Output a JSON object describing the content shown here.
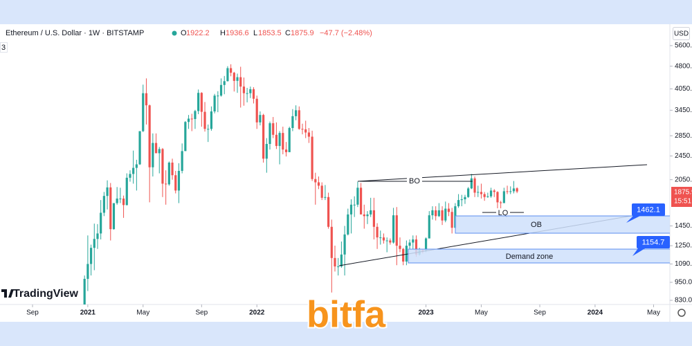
{
  "header": {
    "symbol": "Ethereum / U.S. Dollar · 1W · BITSTAMP",
    "ohlc_letters": [
      "O",
      "H",
      "L",
      "C"
    ],
    "change": "−47.7 (−2.48%)",
    "currency": "USD",
    "pane_label": "3",
    "brand": "TradingView",
    "watermark": "bitfa",
    "countdown": "15:51"
  },
  "chart_data": {
    "type": "candlestick",
    "log_scale": true,
    "up_color": "#26a69a",
    "down_color": "#ef5350",
    "xlim": [
      -26,
      180
    ],
    "xticks": [
      {
        "value": -16,
        "label": "Sep"
      },
      {
        "value": 1,
        "label": "2021"
      },
      {
        "value": 18,
        "label": "May"
      },
      {
        "value": 36,
        "label": "Sep"
      },
      {
        "value": 53,
        "label": "2022"
      },
      {
        "value": 105,
        "label": "2023"
      },
      {
        "value": 122,
        "label": "May"
      },
      {
        "value": 140,
        "label": "Sep"
      },
      {
        "value": 157,
        "label": "2024"
      },
      {
        "value": 175,
        "label": "May"
      }
    ],
    "ylim": [
      784,
      6340
    ],
    "yticks": [
      {
        "value": 5600,
        "label": "5600.0"
      },
      {
        "value": 4800,
        "label": "4800.0"
      },
      {
        "value": 4050,
        "label": "4050.0"
      },
      {
        "value": 3450,
        "label": "3450.0"
      },
      {
        "value": 2850,
        "label": "2850.0"
      },
      {
        "value": 2450,
        "label": "2450.0"
      },
      {
        "value": 2050,
        "label": "2050.0"
      },
      {
        "value": 1450,
        "label": "1450.0"
      },
      {
        "value": 1250,
        "label": "1250.0"
      },
      {
        "value": 1090,
        "label": "1090.0"
      },
      {
        "value": 950,
        "label": "950.0"
      },
      {
        "value": 830,
        "label": "830.0"
      }
    ],
    "open": [
      737,
      975,
      1090,
      1230,
      1315,
      1370,
      1600,
      1815,
      1935,
      1415,
      1720,
      1780,
      1780,
      1695,
      2080,
      2140,
      2240,
      2300,
      2950,
      3920,
      3580,
      2250,
      2700,
      2500,
      2580,
      1990,
      1980,
      2330,
      2120,
      1890,
      2190,
      2540,
      3160,
      3240,
      3230,
      3430,
      3930,
      3410,
      3000,
      3000,
      3420,
      3850,
      3850,
      4170,
      4290,
      4730,
      4570,
      4300,
      4420,
      4120,
      3920,
      3920,
      4040,
      3760,
      3150,
      3330,
      2400,
      2680,
      3130,
      2870,
      2640,
      2910,
      2570,
      2520,
      3020,
      3300,
      3450,
      3000,
      2990,
      2920,
      2830,
      2060,
      2010,
      1960,
      1790,
      1800,
      1440,
      1140,
      1070,
      1070,
      1170,
      1360,
      1580,
      1700,
      1700,
      1930,
      1580,
      1560,
      1580,
      1630,
      1440,
      1330,
      1330,
      1300,
      1300,
      1280,
      1570,
      1250,
      1220,
      1110,
      1250,
      1280,
      1310,
      1170,
      1210,
      1200,
      1320,
      1570,
      1630,
      1560,
      1630,
      1510,
      1650,
      1610,
      1430,
      1680,
      1760,
      1770,
      1800,
      1920,
      2070,
      1860,
      1870,
      1840,
      1800,
      1810,
      1890,
      1870,
      1730,
      1720,
      1880,
      1870,
      1880,
      1922.2
    ],
    "high": [
      1000,
      1350,
      1260,
      1475,
      1470,
      1760,
      1870,
      2040,
      2000,
      1720,
      1940,
      1930,
      1820,
      2150,
      2200,
      2550,
      2380,
      2950,
      4180,
      4380,
      3600,
      2900,
      2900,
      2620,
      2600,
      2200,
      2350,
      2400,
      2190,
      2320,
      2690,
      3180,
      3330,
      3360,
      3460,
      4030,
      3950,
      3670,
      3100,
      3550,
      3900,
      3980,
      4380,
      4460,
      4800,
      4870,
      4600,
      4540,
      4780,
      4410,
      4080,
      4120,
      4100,
      3850,
      3420,
      3360,
      2800,
      3170,
      3280,
      3150,
      2950,
      3050,
      2720,
      3050,
      3480,
      3580,
      3550,
      3120,
      3190,
      3020,
      2960,
      2160,
      2100,
      2010,
      1970,
      1860,
      1520,
      1250,
      1140,
      1290,
      1450,
      1650,
      1770,
      1810,
      2020,
      2000,
      1700,
      1620,
      1790,
      1790,
      1480,
      1400,
      1370,
      1330,
      1320,
      1660,
      1670,
      1330,
      1230,
      1300,
      1310,
      1350,
      1350,
      1230,
      1220,
      1330,
      1620,
      1680,
      1680,
      1720,
      1680,
      1740,
      1720,
      1660,
      1720,
      1840,
      1830,
      1830,
      1940,
      2140,
      2100,
      1960,
      1990,
      1870,
      1860,
      1930,
      1910,
      1880,
      1750,
      1930,
      1960,
      1950,
      2030,
      1936.6
    ],
    "low": [
      715,
      890,
      1000,
      1040,
      1220,
      1310,
      1560,
      1640,
      1300,
      1410,
      1700,
      1720,
      1540,
      1690,
      2020,
      1990,
      1890,
      2290,
      2930,
      3100,
      1730,
      2100,
      2500,
      2150,
      1800,
      1700,
      1960,
      2050,
      1850,
      1720,
      2150,
      2540,
      3000,
      2950,
      3000,
      3350,
      3050,
      2940,
      2720,
      2960,
      3370,
      3400,
      3820,
      3890,
      4280,
      4450,
      3970,
      3930,
      3520,
      3570,
      3660,
      3780,
      3630,
      3000,
      3080,
      2330,
      2160,
      2570,
      2800,
      2580,
      2300,
      2480,
      2440,
      2520,
      2950,
      3200,
      2980,
      2880,
      2800,
      2700,
      2030,
      1700,
      1910,
      1760,
      1760,
      1420,
      880,
      1030,
      1000,
      1060,
      1000,
      1350,
      1370,
      1550,
      1670,
      1600,
      1420,
      1470,
      1550,
      1310,
      1220,
      1260,
      1270,
      1190,
      1260,
      1270,
      1080,
      1190,
      1080,
      1080,
      1220,
      1220,
      1150,
      1160,
      1180,
      1190,
      1320,
      1520,
      1510,
      1550,
      1460,
      1490,
      1560,
      1370,
      1420,
      1660,
      1680,
      1710,
      1790,
      1910,
      1800,
      1800,
      1780,
      1750,
      1790,
      1790,
      1800,
      1630,
      1630,
      1720,
      1840,
      1840,
      1850,
      1853.5
    ],
    "close": [
      975,
      1090,
      1230,
      1315,
      1370,
      1600,
      1815,
      1935,
      1415,
      1720,
      1780,
      1780,
      1695,
      2080,
      2140,
      2240,
      2300,
      2950,
      3920,
      3580,
      2250,
      2700,
      2500,
      2580,
      1990,
      1980,
      2330,
      2120,
      1890,
      2190,
      2540,
      3160,
      3240,
      3230,
      3430,
      3930,
      3410,
      3000,
      3000,
      3420,
      3850,
      3850,
      4170,
      4290,
      4730,
      4570,
      4300,
      4420,
      4120,
      3920,
      3920,
      4040,
      3760,
      3150,
      3330,
      2400,
      2680,
      3130,
      2870,
      2640,
      2910,
      2570,
      2520,
      3020,
      3300,
      3450,
      3000,
      2990,
      2920,
      2830,
      2060,
      2010,
      1960,
      1790,
      1800,
      1440,
      1140,
      1070,
      1070,
      1170,
      1360,
      1580,
      1700,
      1700,
      1930,
      1580,
      1560,
      1580,
      1630,
      1440,
      1330,
      1330,
      1300,
      1300,
      1280,
      1570,
      1250,
      1220,
      1110,
      1250,
      1280,
      1310,
      1170,
      1210,
      1200,
      1320,
      1570,
      1630,
      1560,
      1630,
      1510,
      1650,
      1610,
      1430,
      1680,
      1760,
      1770,
      1800,
      1920,
      2070,
      1860,
      1870,
      1840,
      1800,
      1810,
      1890,
      1870,
      1730,
      1720,
      1880,
      1870,
      1880,
      1920,
      1875.9
    ]
  },
  "annotations": {
    "bo": "BO",
    "lq": "LQ",
    "ob": "OB",
    "demand": "Demand zone",
    "ob_price": 1462.1,
    "demand_price": 1154.7
  }
}
